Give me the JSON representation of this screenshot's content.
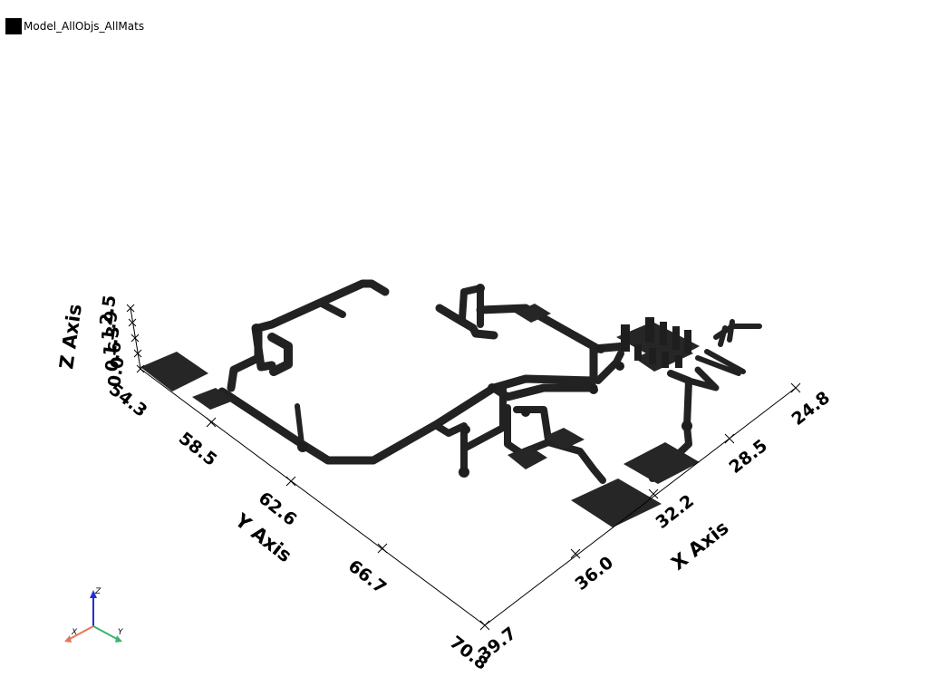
{
  "legend": {
    "label": "Model_AllObjs_AllMats",
    "color": "#000000"
  },
  "axes": {
    "x": {
      "title": "X Axis",
      "ticks": [
        "24.8",
        "28.5",
        "32.2",
        "36.0",
        "39.7"
      ]
    },
    "y": {
      "title": "Y Axis",
      "ticks": [
        "54.3",
        "58.5",
        "62.6",
        "66.7",
        "70.8"
      ]
    },
    "z": {
      "title": "Z Axis",
      "ticks": [
        "0.0",
        "0.6",
        "1.3",
        "1.9",
        "2.5"
      ]
    }
  },
  "orientation_widget": {
    "x_label": "X",
    "y_label": "Y",
    "z_label": "Z",
    "x_color": "#e8735a",
    "y_color": "#3cb371",
    "z_color": "#1f2fd6"
  },
  "model": {
    "color": "#222222"
  }
}
